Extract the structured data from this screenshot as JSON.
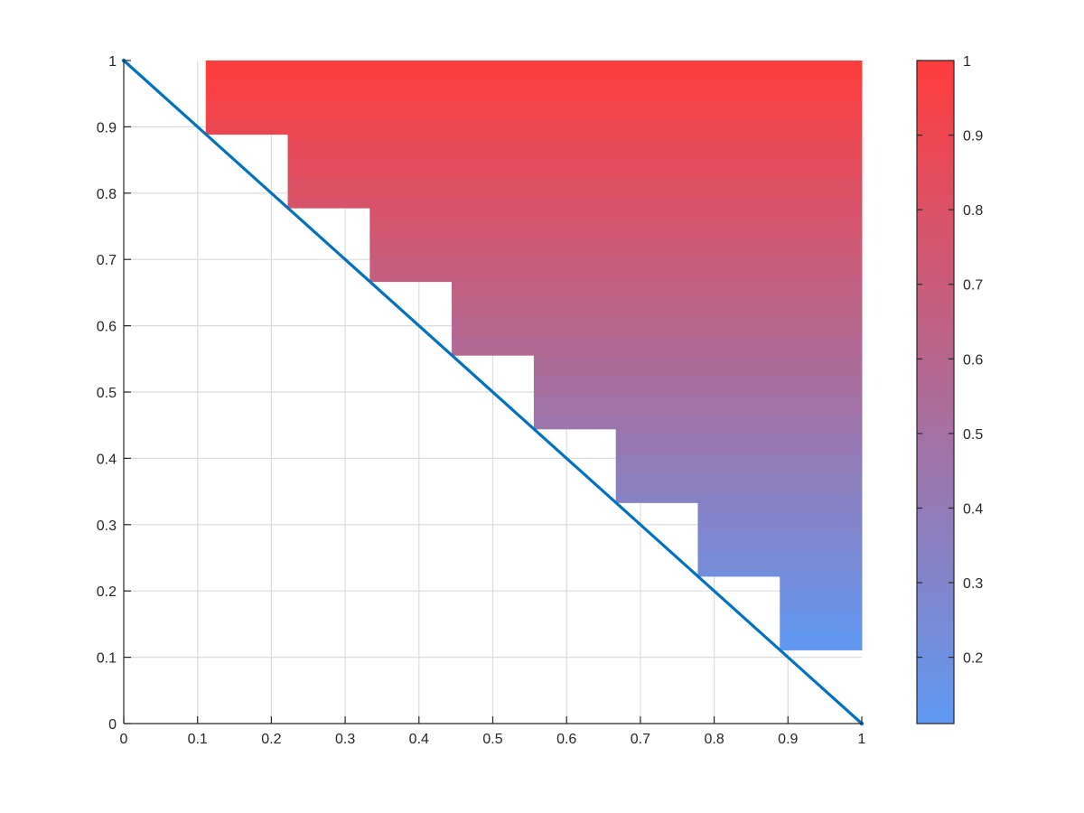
{
  "chart_data": {
    "type": "heatmap",
    "title": "",
    "xlabel": "",
    "ylabel": "",
    "xlim": [
      0,
      1
    ],
    "ylim": [
      0,
      1
    ],
    "grid": true,
    "x_ticks": [
      "0",
      "0.1",
      "0.2",
      "0.3",
      "0.4",
      "0.5",
      "0.6",
      "0.7",
      "0.8",
      "0.9",
      "1"
    ],
    "y_ticks": [
      "0",
      "0.1",
      "0.2",
      "0.3",
      "0.4",
      "0.5",
      "0.6",
      "0.7",
      "0.8",
      "0.9",
      "1"
    ],
    "surface": {
      "description_value": "color equals y",
      "steps": [
        {
          "x_start": 0.1111,
          "y_bottom": 0.8889
        },
        {
          "x_start": 0.2222,
          "y_bottom": 0.7778
        },
        {
          "x_start": 0.3333,
          "y_bottom": 0.6667
        },
        {
          "x_start": 0.4444,
          "y_bottom": 0.5556
        },
        {
          "x_start": 0.5556,
          "y_bottom": 0.4444
        },
        {
          "x_start": 0.6667,
          "y_bottom": 0.3333
        },
        {
          "x_start": 0.7778,
          "y_bottom": 0.2222
        },
        {
          "x_start": 0.8889,
          "y_bottom": 0.1111
        }
      ],
      "x_end": 1,
      "y_top": 1,
      "value_rows": 30
    },
    "line": {
      "x": [
        0,
        1
      ],
      "y": [
        1,
        0
      ],
      "color": "#0072BD"
    },
    "colorbar": {
      "limits": [
        0.1111,
        1
      ],
      "ticks": [
        "0.2",
        "0.3",
        "0.4",
        "0.5",
        "0.6",
        "0.7",
        "0.8",
        "0.9",
        "1"
      ],
      "color_low": "#5f99f2",
      "color_high": "#ff3c3c",
      "placement": "right"
    }
  }
}
